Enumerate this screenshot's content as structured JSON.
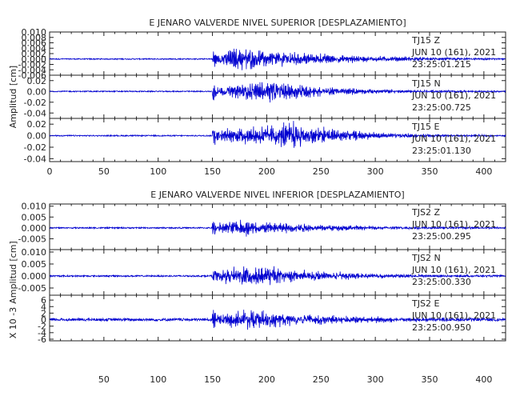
{
  "chart_data": [
    {
      "type": "line",
      "title": "E JENARO VALVERDE NIVEL SUPERIOR [DESPLAZAMIENTO]",
      "ylabel": "Amplitud [cm]",
      "xlim": [
        0,
        420
      ],
      "x_ticks": [
        "0",
        "50",
        "100",
        "150",
        "200",
        "250",
        "300",
        "350",
        "400"
      ],
      "channels": [
        {
          "name": "TJ15 Z",
          "station_label": "TJ15   Z",
          "date_label": "JUN 10 (161), 2021",
          "time_label": "23:25:01.215",
          "ylim": [
            -0.006,
            0.01
          ],
          "y_ticks": [
            "0.010",
            "0.008",
            "0.006",
            "0.004",
            "0.002",
            "0.000",
            "-0.002",
            "-0.004",
            "-0.006"
          ],
          "onset_s": 150,
          "peak_s": 175,
          "decay_s": 90,
          "amplitude": 0.0045,
          "noise": 0.0002
        },
        {
          "name": "TJ15 N",
          "station_label": "TJ15   N",
          "date_label": "JUN 10 (161), 2021",
          "time_label": "23:25:00.725",
          "ylim": [
            -0.05,
            0.03
          ],
          "y_ticks": [
            "0.02",
            "0.00",
            "-0.02",
            "-0.04"
          ],
          "onset_s": 150,
          "peak_s": 205,
          "decay_s": 60,
          "amplitude": 0.022,
          "noise": 0.001
        },
        {
          "name": "TJ15 E",
          "station_label": "TJ15   E",
          "date_label": "JUN 10 (161), 2021",
          "time_label": "23:25:01.130",
          "ylim": [
            -0.045,
            0.03
          ],
          "y_ticks": [
            "0.02",
            "0.00",
            "-0.02",
            "-0.04"
          ],
          "onset_s": 150,
          "peak_s": 225,
          "decay_s": 55,
          "amplitude": 0.025,
          "noise": 0.001
        }
      ]
    },
    {
      "type": "line",
      "title": "E JENARO VALVERDE NIVEL INFERIOR [DESPLAZAMIENTO]",
      "ylabel": "Amplitud [cm]",
      "xlim": [
        0,
        420
      ],
      "x_ticks": [
        "50",
        "100",
        "150",
        "200",
        "250",
        "300",
        "350",
        "400"
      ],
      "channels": [
        {
          "name": "TJS2 Z",
          "station_label": "TJS2   Z",
          "date_label": "JUN 10 (161), 2021",
          "time_label": "23:25:00.295",
          "ylim": [
            -0.01,
            0.011
          ],
          "y_ticks": [
            "0.010",
            "0.005",
            "0.000",
            "-0.005"
          ],
          "onset_s": 150,
          "peak_s": 175,
          "decay_s": 80,
          "amplitude": 0.004,
          "noise": 0.0003
        },
        {
          "name": "TJS2 N",
          "station_label": "TJS2   N",
          "date_label": "JUN 10 (161), 2021",
          "time_label": "23:25:00.330",
          "ylim": [
            -0.008,
            0.011
          ],
          "y_ticks": [
            "0.010",
            "0.005",
            "0.000",
            "-0.005"
          ],
          "onset_s": 150,
          "peak_s": 185,
          "decay_s": 70,
          "amplitude": 0.005,
          "noise": 0.0003
        },
        {
          "name": "TJS2 E",
          "station_label": "TJS2   E",
          "date_label": "JUN 10 (161), 2021",
          "time_label": "23:25:00.950",
          "ylim": [
            -6.5,
            7.5
          ],
          "y_ticks": [
            "6",
            "4",
            "2",
            "0",
            "-2",
            "-4",
            "-6"
          ],
          "y_scale_label": "X 10 -3",
          "onset_s": 150,
          "peak_s": 180,
          "decay_s": 80,
          "amplitude": 3.5,
          "noise": 0.4
        }
      ]
    }
  ]
}
